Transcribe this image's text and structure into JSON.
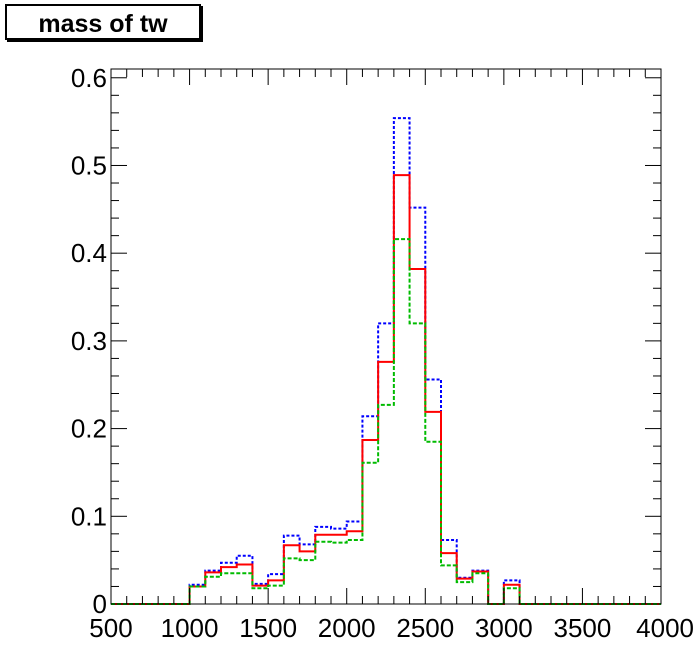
{
  "title": "mass of tw",
  "chart_data": {
    "type": "histogram",
    "title": "mass of tw",
    "xlabel": "",
    "ylabel": "",
    "xlim": [
      500,
      4000
    ],
    "ylim": [
      0,
      0.61
    ],
    "xticks": [
      "500",
      "1000",
      "1500",
      "2000",
      "2500",
      "3000",
      "3500",
      "4000"
    ],
    "yticks": [
      "0",
      "0.1",
      "0.2",
      "0.3",
      "0.4",
      "0.5",
      "0.6"
    ],
    "bin_width": 100,
    "bin_edges_start": 500,
    "grid": false,
    "legend": "none",
    "series": [
      {
        "color": "#0000ff",
        "style": "dotted",
        "values": [
          0,
          0,
          0,
          0,
          0,
          0.022,
          0.038,
          0.047,
          0.055,
          0.023,
          0.034,
          0.078,
          0.068,
          0.088,
          0.086,
          0.094,
          0.214,
          0.32,
          0.554,
          0.452,
          0.256,
          0.073,
          0.03,
          0.038,
          0,
          0.027,
          0,
          0,
          0,
          0,
          0,
          0,
          0,
          0,
          0
        ]
      },
      {
        "color": "#ff0000",
        "style": "solid",
        "values": [
          0,
          0,
          0,
          0,
          0,
          0.02,
          0.036,
          0.042,
          0.045,
          0.021,
          0.027,
          0.067,
          0.06,
          0.079,
          0.079,
          0.083,
          0.187,
          0.276,
          0.489,
          0.382,
          0.219,
          0.058,
          0.029,
          0.037,
          0,
          0.022,
          0,
          0,
          0,
          0,
          0,
          0,
          0,
          0,
          0
        ]
      },
      {
        "color": "#00bb00",
        "style": "dashed",
        "values": [
          0,
          0,
          0,
          0,
          0,
          0.02,
          0.031,
          0.035,
          0.035,
          0.018,
          0.021,
          0.052,
          0.05,
          0.071,
          0.07,
          0.073,
          0.161,
          0.227,
          0.416,
          0.32,
          0.185,
          0.044,
          0.025,
          0.035,
          0,
          0.018,
          0,
          0,
          0,
          0,
          0,
          0,
          0,
          0,
          0
        ]
      }
    ]
  }
}
